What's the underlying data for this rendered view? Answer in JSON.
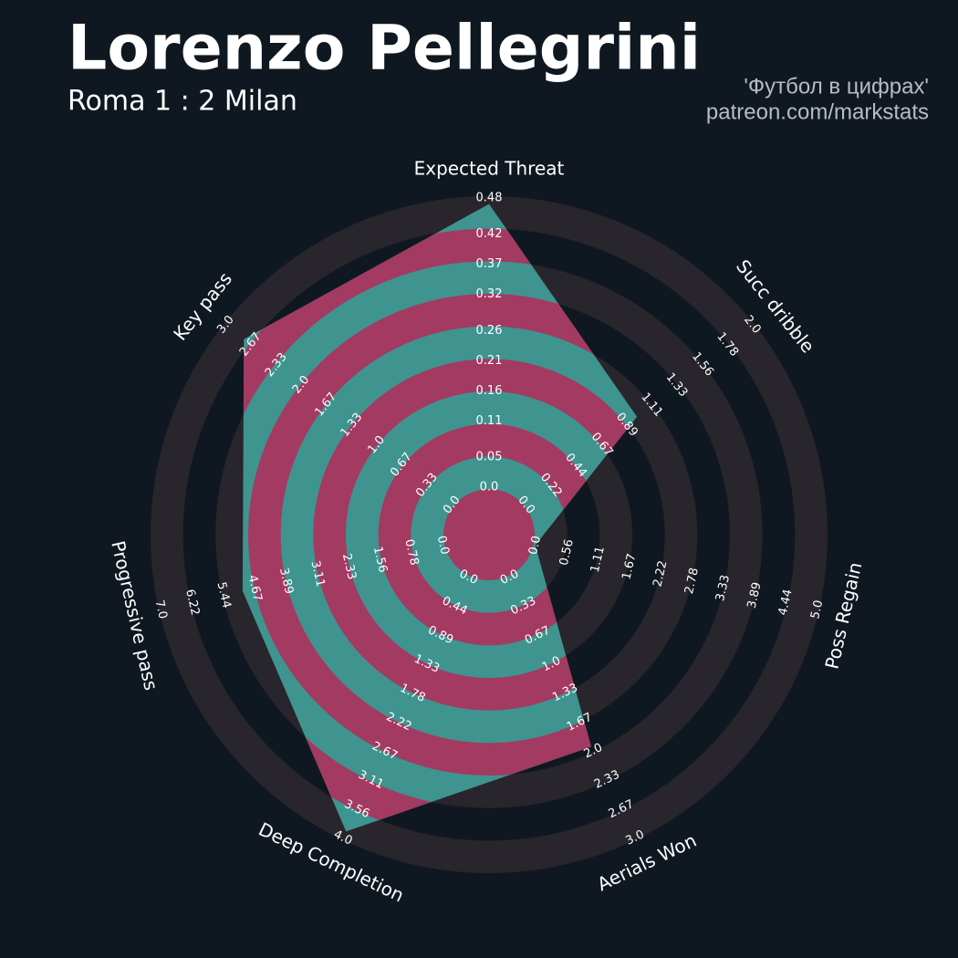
{
  "chart_data": {
    "type": "radar",
    "title": "Lorenzo Pellegrini",
    "subtitle": "Roma 1 : 2 Milan",
    "credits": [
      "'Футбол в цифрах'",
      "patreon.com/markstats"
    ],
    "categories": [
      "Expected Threat",
      "Succ dribble",
      "Poss Regain",
      "Aerials Won",
      "Deep Completion",
      "Progressive pass",
      "Key pass"
    ],
    "values": [
      0.47,
      0.98,
      0,
      1.95,
      3.9,
      4.97,
      2.76
    ],
    "color": "#3f948f",
    "ring_color": "#a33a62",
    "circle_color": "#28252c",
    "axes": [
      {
        "lim": [
          0,
          0.48
        ],
        "ticks": [
          {
            "value": 0,
            "label": "0.0"
          },
          0.05,
          0.11,
          0.16,
          0.21,
          0.26,
          0.32,
          0.37,
          0.42,
          0.48
        ]
      },
      {
        "lim": [
          0,
          2
        ],
        "ticks": [
          {
            "value": 0,
            "label": "0.0"
          },
          0.22,
          0.44,
          0.67,
          0.89,
          1.11,
          1.33,
          1.56,
          1.78,
          {
            "value": 2,
            "label": "2.0"
          }
        ]
      },
      {
        "lim": [
          0,
          5
        ],
        "ticks": [
          {
            "value": 0,
            "label": "0.0"
          },
          0.56,
          1.11,
          1.67,
          2.22,
          2.78,
          3.33,
          3.89,
          4.44,
          {
            "value": 5,
            "label": "5.0"
          }
        ]
      },
      {
        "lim": [
          0,
          3
        ],
        "ticks": [
          {
            "value": 0,
            "label": "0.0"
          },
          0.33,
          0.67,
          {
            "value": 1,
            "label": "1.0"
          },
          1.33,
          1.67,
          {
            "value": 2,
            "label": "2.0"
          },
          2.33,
          2.67,
          {
            "value": 3,
            "label": "3.0"
          }
        ]
      },
      {
        "lim": [
          0,
          4
        ],
        "ticks": [
          {
            "value": 0,
            "label": "0.0"
          },
          0.44,
          0.89,
          1.33,
          1.78,
          2.22,
          2.67,
          3.11,
          3.56,
          {
            "value": 4,
            "label": "4.0"
          }
        ]
      },
      {
        "lim": [
          0,
          7
        ],
        "ticks": [
          {
            "value": 0,
            "label": "0.0"
          },
          0.78,
          1.56,
          2.33,
          3.11,
          3.89,
          4.67,
          5.44,
          6.22,
          {
            "value": 7,
            "label": "7.0"
          }
        ]
      },
      {
        "lim": [
          0,
          3
        ],
        "ticks": [
          {
            "value": 0,
            "label": "0.0"
          },
          0.33,
          0.67,
          {
            "value": 1,
            "label": "1.0"
          },
          1.33,
          1.67,
          {
            "value": 2,
            "label": "2.0"
          },
          2.33,
          2.67,
          {
            "value": 3,
            "label": "3.0"
          }
        ]
      }
    ]
  }
}
